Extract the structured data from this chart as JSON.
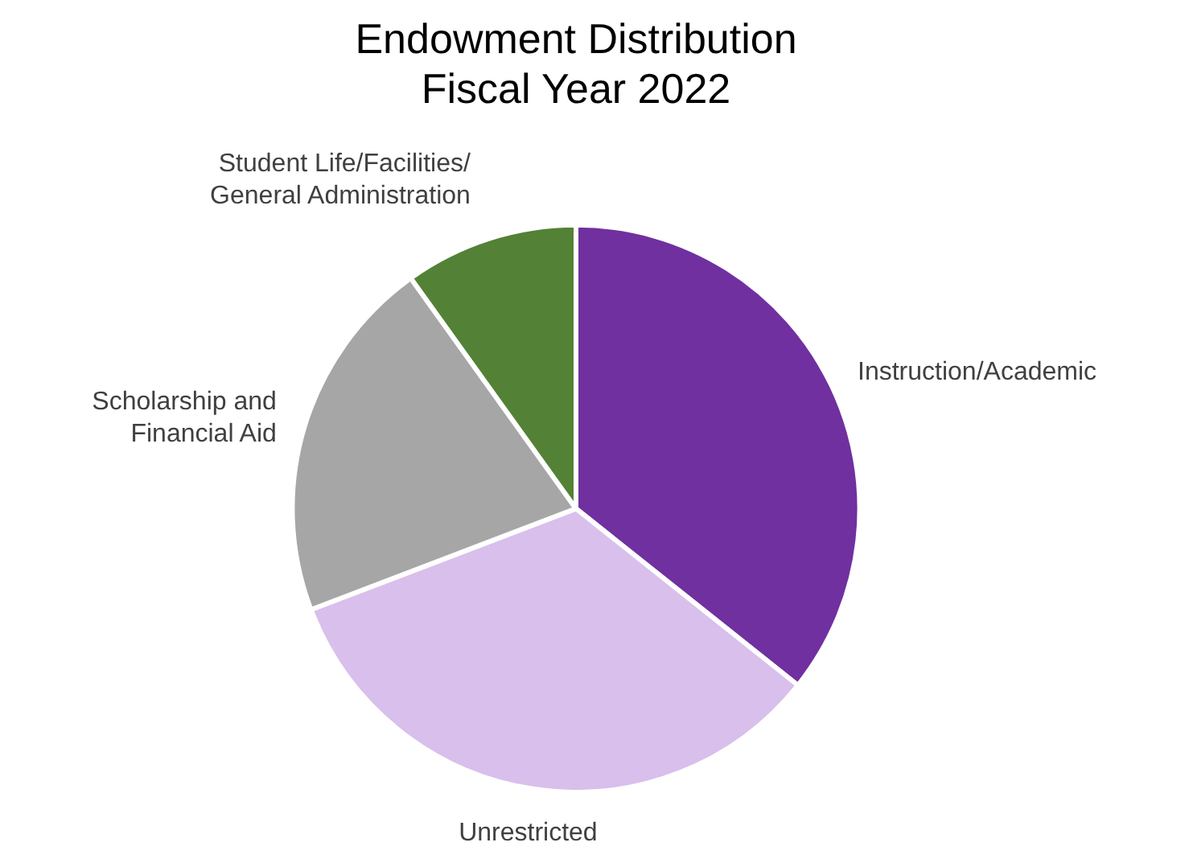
{
  "chart_data": {
    "type": "pie",
    "title": "Endowment Distribution\nFiscal Year 2022",
    "categories": [
      "Instruction/Academic",
      "Unrestricted",
      "Scholarship and Financial Aid",
      "Student Life/Facilities/General Administration"
    ],
    "values": [
      35.7,
      33.5,
      20.9,
      9.9
    ],
    "colors": [
      "#7030a0",
      "#d9bfec",
      "#a6a6a6",
      "#538135"
    ],
    "legend": false
  }
}
